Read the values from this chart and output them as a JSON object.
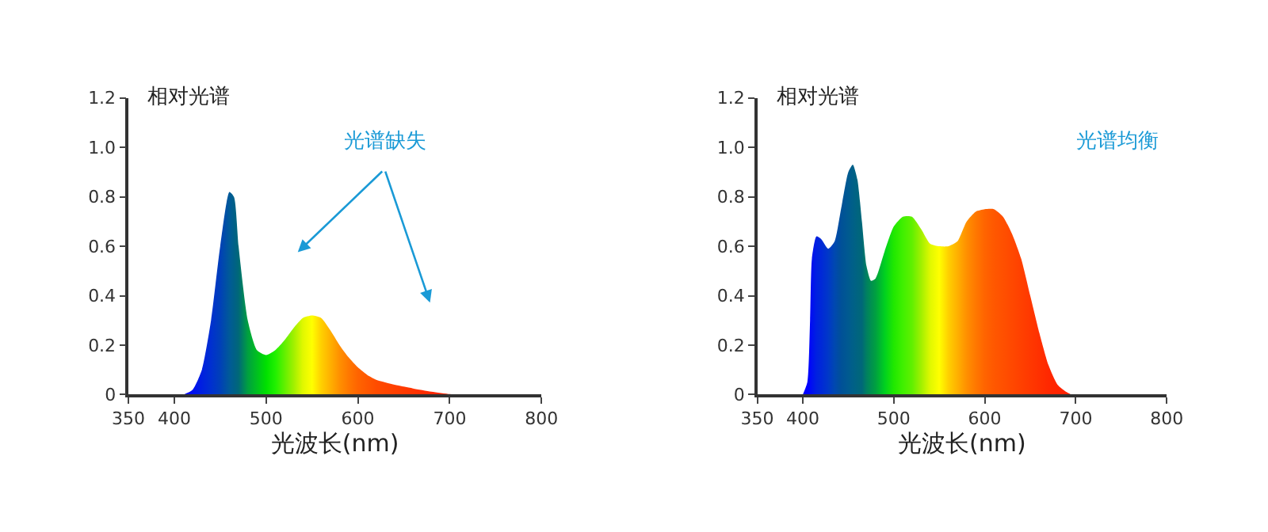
{
  "chart_data": [
    {
      "type": "area",
      "xlabel": "光波长(nm)",
      "ylabel": "相对光谱",
      "annotations": [
        "光谱缺失"
      ],
      "xlim": [
        350,
        800
      ],
      "xticks": [
        350,
        400,
        500,
        600,
        700,
        800
      ],
      "ylim": [
        0,
        1.2
      ],
      "yticks": [
        0,
        0.2,
        0.4,
        0.6,
        0.8,
        {
          "value": 1,
          "label": "1.0"
        },
        1.2
      ],
      "series": [
        {
          "x": [
            410,
            420,
            430,
            440,
            450,
            460,
            465,
            470,
            480,
            490,
            500,
            510,
            520,
            530,
            540,
            550,
            560,
            570,
            580,
            590,
            600,
            610,
            620,
            640,
            660,
            680,
            700,
            705
          ],
          "values": [
            0,
            0.02,
            0.1,
            0.3,
            0.6,
            0.82,
            0.8,
            0.6,
            0.3,
            0.18,
            0.16,
            0.18,
            0.22,
            0.27,
            0.31,
            0.32,
            0.31,
            0.26,
            0.2,
            0.15,
            0.11,
            0.08,
            0.06,
            0.04,
            0.025,
            0.012,
            0.002,
            0
          ],
          "colors": [
            "#0000ff",
            "#0010f0",
            "#0020e0",
            "#0030d0",
            "#0040b8",
            "#005a98",
            "#006088",
            "#006878",
            "#00a040",
            "#00c020",
            "#00e000",
            "#20f000",
            "#60f000",
            "#a0f000",
            "#e0f800",
            "#ffff00",
            "#ffd000",
            "#ffb000",
            "#ff9000",
            "#ff7800",
            "#ff6400",
            "#ff5800",
            "#ff4c00",
            "#ff4000",
            "#ff3400",
            "#ff2800",
            "#ff2000",
            "#ff2000"
          ]
        }
      ]
    },
    {
      "type": "area",
      "xlabel": "光波长(nm)",
      "ylabel": "相对光谱",
      "annotations": [
        "光谱均衡"
      ],
      "xlim": [
        350,
        800
      ],
      "xticks": [
        350,
        400,
        500,
        600,
        700,
        800
      ],
      "ylim": [
        0,
        1.2
      ],
      "yticks": [
        0,
        0.2,
        0.4,
        0.6,
        0.8,
        {
          "value": 1,
          "label": "1.0"
        },
        1.2
      ],
      "series": [
        {
          "x": [
            400,
            405,
            408,
            410,
            415,
            420,
            428,
            435,
            442,
            450,
            455,
            460,
            465,
            470,
            475,
            480,
            490,
            500,
            510,
            520,
            530,
            540,
            550,
            560,
            570,
            580,
            590,
            600,
            610,
            620,
            630,
            640,
            650,
            660,
            670,
            680,
            690,
            695
          ],
          "values": [
            0,
            0.05,
            0.3,
            0.55,
            0.64,
            0.63,
            0.59,
            0.62,
            0.75,
            0.9,
            0.93,
            0.87,
            0.7,
            0.52,
            0.46,
            0.47,
            0.58,
            0.68,
            0.72,
            0.72,
            0.67,
            0.61,
            0.6,
            0.6,
            0.62,
            0.7,
            0.74,
            0.75,
            0.75,
            0.72,
            0.65,
            0.55,
            0.4,
            0.25,
            0.12,
            0.04,
            0.01,
            0
          ],
          "colors": [
            "#0000ff",
            "#0000ff",
            "#0008f8",
            "#0010f0",
            "#0020e0",
            "#0028d8",
            "#0038c8",
            "#0048b0",
            "#005098",
            "#005a90",
            "#006088",
            "#006480",
            "#006878",
            "#008060",
            "#009050",
            "#00a040",
            "#00d020",
            "#20e800",
            "#40f000",
            "#60f000",
            "#a0f000",
            "#e0f800",
            "#ffff00",
            "#ffd000",
            "#ffb000",
            "#ff9000",
            "#ff7800",
            "#ff6400",
            "#ff5800",
            "#ff5000",
            "#ff4800",
            "#ff4000",
            "#ff3800",
            "#ff3000",
            "#ff2800",
            "#ff2400",
            "#ff2000",
            "#ff2000"
          ]
        }
      ]
    }
  ]
}
